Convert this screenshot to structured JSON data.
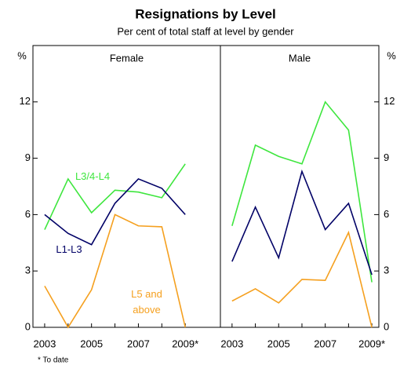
{
  "title": "Resignations by Level",
  "subtitle": "Per cent of total staff at level by gender",
  "footnote": "* To date",
  "chart_data": [
    {
      "type": "line",
      "title": "Female",
      "ylabel": "%",
      "x": [
        2003,
        2004,
        2005,
        2006,
        2007,
        2008,
        2009
      ],
      "xlim": [
        2002.5,
        2010.5
      ],
      "xticks": [
        2003,
        2005,
        2007,
        {
          "value": 2009,
          "label": "2009*"
        }
      ],
      "ylim": [
        0,
        15
      ],
      "yticks": [
        0,
        3,
        6,
        9,
        12
      ],
      "series": [
        {
          "name": "L3/4-L4",
          "color": "#3ee63e",
          "values": [
            5.2,
            7.9,
            6.1,
            7.3,
            7.2,
            6.9,
            8.7
          ]
        },
        {
          "name": "L1-L3",
          "color": "#000066",
          "values": [
            6.0,
            5.0,
            4.4,
            6.6,
            7.9,
            7.4,
            6.0
          ]
        },
        {
          "name": "L5 and above",
          "color": "#f5a01f",
          "values": [
            2.2,
            0,
            2.0,
            6.0,
            5.4,
            5.35,
            0
          ]
        }
      ]
    },
    {
      "type": "line",
      "title": "Male",
      "ylabel": "%",
      "x": [
        2003,
        2004,
        2005,
        2006,
        2007,
        2008,
        2009
      ],
      "xlim": [
        2002.5,
        2009.3
      ],
      "xticks": [
        2003,
        2005,
        2007,
        {
          "value": 2009,
          "label": "2009*"
        }
      ],
      "ylim": [
        0,
        15
      ],
      "yticks": [
        0,
        3,
        6,
        9,
        12
      ],
      "series": [
        {
          "color": "#3ee63e",
          "values": [
            5.4,
            9.7,
            9.1,
            8.7,
            12.0,
            10.5,
            2.4
          ]
        },
        {
          "color": "#000066",
          "values": [
            3.5,
            6.4,
            3.7,
            8.3,
            5.2,
            6.6,
            2.8
          ]
        },
        {
          "color": "#f5a01f",
          "values": [
            1.4,
            2.05,
            1.3,
            2.55,
            2.5,
            5.05,
            0
          ]
        }
      ]
    }
  ]
}
